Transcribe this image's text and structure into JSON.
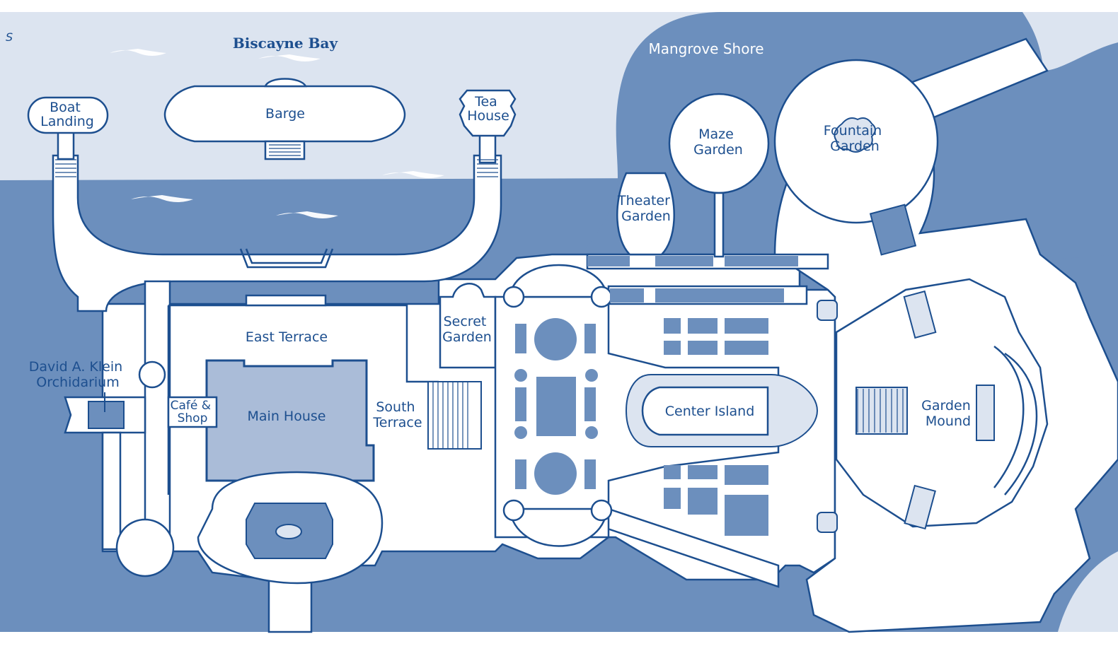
{
  "map": {
    "colors": {
      "bay": "#dce4f0",
      "deep_water": "#6c8fbd",
      "land": "#ffffff",
      "outline": "#1d4f8f",
      "building": "#aabcd8"
    },
    "water_labels": {
      "biscayne_bay": "Biscayne Bay",
      "mangrove_shore": "Mangrove Shore"
    },
    "places": {
      "boat_landing": [
        "Boat",
        "Landing"
      ],
      "barge": "Barge",
      "tea_house": [
        "Tea",
        "House"
      ],
      "maze_garden": [
        "Maze",
        "Garden"
      ],
      "fountain_garden": [
        "Fountain",
        "Garden"
      ],
      "theater_garden": [
        "Theater",
        "Garden"
      ],
      "east_terrace": "East Terrace",
      "secret_garden": [
        "Secret",
        "Garden"
      ],
      "orchidarium": [
        "David A. Klein",
        "Orchidarium"
      ],
      "cafe_shop": [
        "Café &",
        "Shop"
      ],
      "main_house": "Main House",
      "south_terrace": [
        "South",
        "Terrace"
      ],
      "center_island": "Center Island",
      "garden_mound": [
        "Garden",
        "Mound"
      ]
    },
    "edge_glyph": "S"
  }
}
